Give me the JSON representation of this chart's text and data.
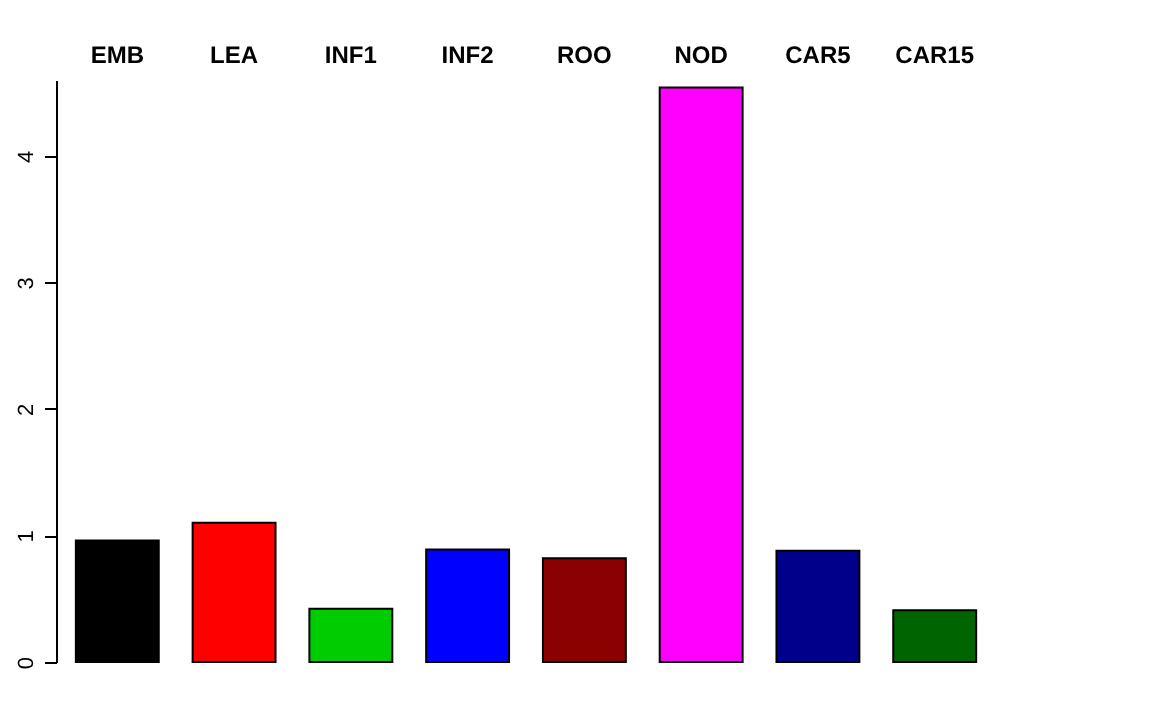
{
  "chart_data": {
    "type": "bar",
    "categories": [
      "EMB",
      "LEA",
      "INF1",
      "INF2",
      "ROO",
      "NOD",
      "CAR5",
      "CAR15"
    ],
    "values": [
      0.96,
      1.1,
      0.42,
      0.89,
      0.82,
      4.54,
      0.88,
      0.41
    ],
    "colors": [
      "#000000",
      "#ff0000",
      "#00cd00",
      "#0000ff",
      "#8b0000",
      "#ff00ff",
      "#00008b",
      "#006400"
    ],
    "ylim": [
      0,
      4.6
    ],
    "yticks": [
      0,
      1,
      2,
      3,
      4
    ],
    "grid": false
  }
}
